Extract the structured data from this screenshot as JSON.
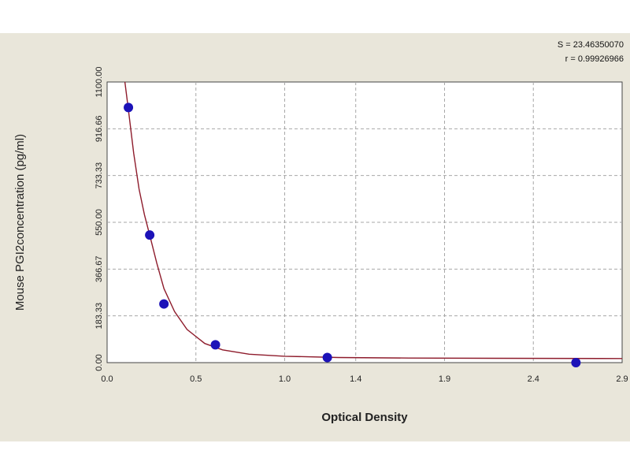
{
  "chart_data": {
    "type": "scatter",
    "title": "",
    "xlabel": "Optical Density",
    "ylabel": "Mouse PGI2concentration (pg/ml)",
    "xlim": [
      0.0,
      2.9
    ],
    "ylim": [
      0.0,
      1100.0
    ],
    "x_ticks": [
      "0.0",
      "0.5",
      "1.0",
      "1.4",
      "1.9",
      "2.4",
      "2.9"
    ],
    "y_ticks": [
      "0.00",
      "183.33",
      "366.67",
      "550.00",
      "733.33",
      "916.66",
      "1100.00"
    ],
    "grid": true,
    "stats": [
      "S = 23.46350070",
      "r = 0.99926966"
    ],
    "points": [
      {
        "x": 0.12,
        "y": 1000
      },
      {
        "x": 0.24,
        "y": 500
      },
      {
        "x": 0.32,
        "y": 230
      },
      {
        "x": 0.61,
        "y": 70
      },
      {
        "x": 1.24,
        "y": 20
      },
      {
        "x": 2.64,
        "y": 0
      }
    ],
    "fit_curve": {
      "x": [
        0.1,
        0.12,
        0.15,
        0.18,
        0.21,
        0.24,
        0.28,
        0.32,
        0.38,
        0.45,
        0.55,
        0.65,
        0.8,
        1.0,
        1.3,
        1.7,
        2.2,
        2.9
      ],
      "y": [
        1100,
        990,
        820,
        680,
        580,
        500,
        390,
        290,
        200,
        130,
        75,
        50,
        33,
        25,
        20,
        18,
        17,
        16
      ]
    },
    "colors": {
      "point": "#1c12b8",
      "curve": "#8e1c2c",
      "grid": "#a7a7a7",
      "background": "#e9e6da",
      "plot_area": "#ffffff"
    }
  }
}
